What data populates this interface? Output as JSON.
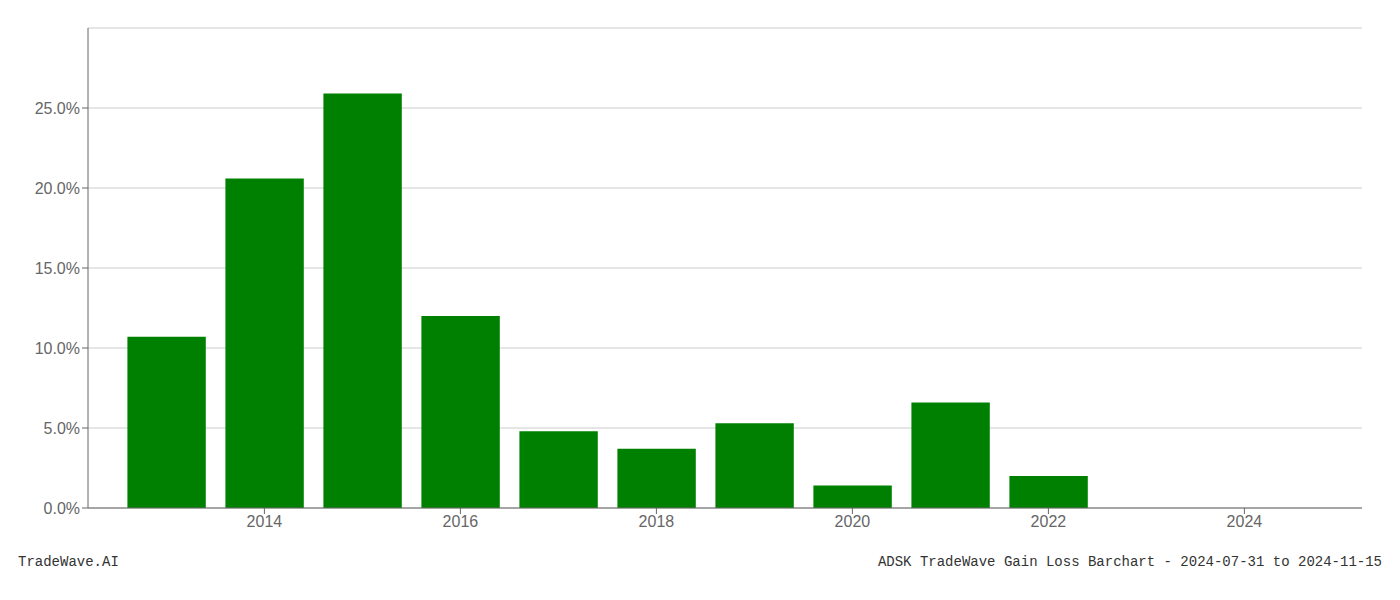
{
  "chart_data": {
    "type": "bar",
    "x": [
      2013,
      2014,
      2015,
      2016,
      2017,
      2018,
      2019,
      2020,
      2021,
      2022
    ],
    "values": [
      0.107,
      0.206,
      0.259,
      0.12,
      0.048,
      0.037,
      0.053,
      0.014,
      0.066,
      0.02
    ],
    "color": "#008000",
    "xlim": [
      2012.2,
      2025.2
    ],
    "xticks": [
      2014,
      2016,
      2018,
      2020,
      2022,
      2024
    ],
    "ylim": [
      0,
      0.3
    ],
    "yticks": [
      {
        "value": 0.0,
        "label": "0.0%"
      },
      {
        "value": 0.05,
        "label": "5.0%"
      },
      {
        "value": 0.1,
        "label": "10.0%"
      },
      {
        "value": 0.15,
        "label": "15.0%"
      },
      {
        "value": 0.2,
        "label": "20.0%"
      },
      {
        "value": 0.25,
        "label": "25.0%"
      }
    ],
    "grid": true,
    "annotations": [
      "TradeWave.AI",
      "ADSK TradeWave Gain Loss Barchart - 2024-07-31 to 2024-11-15"
    ]
  }
}
